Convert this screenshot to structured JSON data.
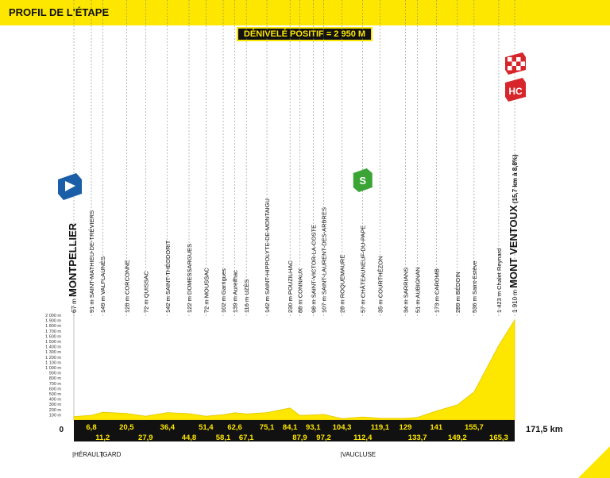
{
  "header": {
    "title": "PROFIL DE L'ÉTAPE"
  },
  "badge": {
    "text": "DÉNIVELÉ POSITIF = 2 950 M"
  },
  "colors": {
    "header": "#fde700",
    "profile_fill": "#fde700",
    "band": "#111111",
    "band_text": "#fde700",
    "sprint": "#3aa535",
    "start": "#1a5ea8",
    "hc": "#d7262b"
  },
  "chart_data": {
    "type": "area",
    "y_axis": {
      "unit": "m",
      "ticks": [
        "2 000 m",
        "1 900 m",
        "1 800 m",
        "1 700 m",
        "1 600 m",
        "1 500 m",
        "1 400 m",
        "1 300 m",
        "1 200 m",
        "1 100 m",
        "1 000 m",
        "900 m",
        "800 m",
        "700 m",
        "600 m",
        "500 m",
        "400 m",
        "300 m",
        "200 m",
        "100 m"
      ]
    },
    "ylim": [
      0,
      2000
    ],
    "xlim": [
      0,
      171.5
    ],
    "zero_label": "0",
    "total_label": "171,5 km",
    "points": [
      {
        "km": 0,
        "ele": 67
      },
      {
        "km": 6.8,
        "ele": 91
      },
      {
        "km": 11.2,
        "ele": 149
      },
      {
        "km": 20.5,
        "ele": 128
      },
      {
        "km": 27.9,
        "ele": 72
      },
      {
        "km": 36.4,
        "ele": 142
      },
      {
        "km": 44.8,
        "ele": 122
      },
      {
        "km": 51.4,
        "ele": 72
      },
      {
        "km": 58.1,
        "ele": 102
      },
      {
        "km": 62.6,
        "ele": 139
      },
      {
        "km": 67.1,
        "ele": 116
      },
      {
        "km": 75.1,
        "ele": 142
      },
      {
        "km": 84.1,
        "ele": 230
      },
      {
        "km": 87.9,
        "ele": 88
      },
      {
        "km": 93.1,
        "ele": 98
      },
      {
        "km": 97.2,
        "ele": 107
      },
      {
        "km": 104.3,
        "ele": 28
      },
      {
        "km": 112.4,
        "ele": 57
      },
      {
        "km": 119.1,
        "ele": 35
      },
      {
        "km": 129,
        "ele": 34
      },
      {
        "km": 133.7,
        "ele": 51
      },
      {
        "km": 141,
        "ele": 173
      },
      {
        "km": 149.2,
        "ele": 289
      },
      {
        "km": 155.7,
        "ele": 536
      },
      {
        "km": 165.3,
        "ele": 1423
      },
      {
        "km": 171.5,
        "ele": 1910
      }
    ],
    "km_labels": [
      {
        "km": 6.8,
        "text": "6,8",
        "row": "top"
      },
      {
        "km": 11.2,
        "text": "11,2",
        "row": "bottom"
      },
      {
        "km": 20.5,
        "text": "20,5",
        "row": "top"
      },
      {
        "km": 27.9,
        "text": "27,9",
        "row": "bottom"
      },
      {
        "km": 36.4,
        "text": "36,4",
        "row": "top"
      },
      {
        "km": 44.8,
        "text": "44,8",
        "row": "bottom"
      },
      {
        "km": 51.4,
        "text": "51,4",
        "row": "top"
      },
      {
        "km": 58.1,
        "text": "58,1",
        "row": "bottom"
      },
      {
        "km": 62.6,
        "text": "62,6",
        "row": "top"
      },
      {
        "km": 67.1,
        "text": "67,1",
        "row": "bottom"
      },
      {
        "km": 75.1,
        "text": "75,1",
        "row": "top"
      },
      {
        "km": 84.1,
        "text": "84,1",
        "row": "top"
      },
      {
        "km": 87.9,
        "text": "87,9",
        "row": "bottom"
      },
      {
        "km": 93.1,
        "text": "93,1",
        "row": "top"
      },
      {
        "km": 97.2,
        "text": "97,2",
        "row": "bottom"
      },
      {
        "km": 104.3,
        "text": "104,3",
        "row": "top"
      },
      {
        "km": 112.4,
        "text": "112,4",
        "row": "bottom"
      },
      {
        "km": 119.1,
        "text": "119,1",
        "row": "top"
      },
      {
        "km": 129,
        "text": "129",
        "row": "top"
      },
      {
        "km": 133.7,
        "text": "133,7",
        "row": "bottom"
      },
      {
        "km": 141,
        "text": "141",
        "row": "top"
      },
      {
        "km": 149.2,
        "text": "149,2",
        "row": "bottom"
      },
      {
        "km": 155.7,
        "text": "155,7",
        "row": "top"
      },
      {
        "km": 165.3,
        "text": "165,3",
        "row": "bottom"
      }
    ],
    "places": [
      {
        "km": 0,
        "alt": "67 m",
        "name": "MONTPELLIER",
        "major": true
      },
      {
        "km": 6.8,
        "alt": "91 m",
        "name": "SAINT-MATHIEU-DE-TRÉVIERS"
      },
      {
        "km": 11.2,
        "alt": "149 m",
        "name": "VALFLAUNÈS"
      },
      {
        "km": 20.5,
        "alt": "128 m",
        "name": "CORCONNE"
      },
      {
        "km": 27.9,
        "alt": "72 m",
        "name": "QUISSAC"
      },
      {
        "km": 36.4,
        "alt": "142 m",
        "name": "SAINT-THÉODORIT"
      },
      {
        "km": 44.8,
        "alt": "122 m",
        "name": "DOMESSARGUES"
      },
      {
        "km": 51.4,
        "alt": "72 m",
        "name": "MOUSSAC"
      },
      {
        "km": 58.1,
        "alt": "102 m",
        "name": "Garrigues"
      },
      {
        "km": 62.6,
        "alt": "139 m",
        "name": "Aureilhac"
      },
      {
        "km": 67.1,
        "alt": "116 m",
        "name": "UZÈS"
      },
      {
        "km": 75.1,
        "alt": "142 m",
        "name": "SAINT-HIPPOLYTE-DE-MONTAIGU"
      },
      {
        "km": 84.1,
        "alt": "230 m",
        "name": "POUZILHAC"
      },
      {
        "km": 87.9,
        "alt": "88 m",
        "name": "CONNAUX"
      },
      {
        "km": 93.1,
        "alt": "98 m",
        "name": "SAINT-VICTOR-LA-COSTE"
      },
      {
        "km": 97.2,
        "alt": "107 m",
        "name": "SAINT-LAURENT-DES-ARBRES"
      },
      {
        "km": 104.3,
        "alt": "28 m",
        "name": "ROQUEMAURE"
      },
      {
        "km": 112.4,
        "alt": "57 m",
        "name": "CHÂTEAUNEUF-DU-PAPE"
      },
      {
        "km": 119.1,
        "alt": "35 m",
        "name": "COURTHÉZON"
      },
      {
        "km": 129,
        "alt": "34 m",
        "name": "SARRIANS"
      },
      {
        "km": 133.7,
        "alt": "51 m",
        "name": "AUBIGNAN"
      },
      {
        "km": 141,
        "alt": "173 m",
        "name": "CAROMB"
      },
      {
        "km": 149.2,
        "alt": "289 m",
        "name": "BÉDOIN"
      },
      {
        "km": 155.7,
        "alt": "536 m",
        "name": "Saint-Estève"
      },
      {
        "km": 165.3,
        "alt": "1 423 m",
        "name": "Chalet Reynard"
      },
      {
        "km": 171.5,
        "alt": "1 910 m",
        "name": "MONT VENTOUX",
        "major": true,
        "extra": "(15,7 km à 8,8%)"
      }
    ],
    "departments": [
      {
        "km": 0,
        "name": "HÉRAULT"
      },
      {
        "km": 11.2,
        "name": "GARD"
      },
      {
        "km": 104.3,
        "name": "VAUCLUSE"
      }
    ],
    "markers": {
      "sprint": "S",
      "climb_category": "HC"
    }
  }
}
